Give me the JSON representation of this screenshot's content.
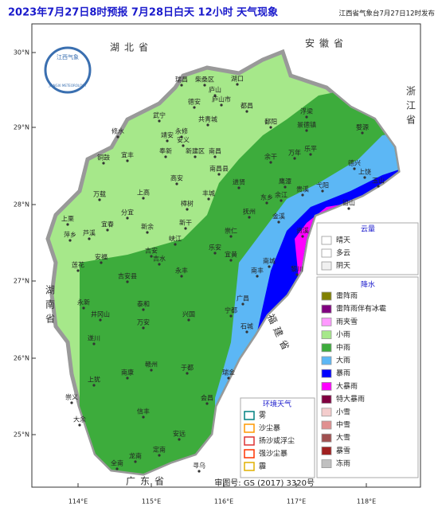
{
  "header": {
    "title": "2023年7月27日8时预报 7月28日白天 12小时  天气现象",
    "publisher": "江西省气象台7月27日12时发布"
  },
  "logo": {
    "name": "江西气象",
    "english": "JIANGXI METEOROLOGY"
  },
  "lat_labels": [
    "30°N",
    "29°N",
    "28°N",
    "27°N",
    "26°N",
    "25°N"
  ],
  "lon_labels": [
    "114°E",
    "115°E",
    "116°E",
    "117°E",
    "118°E"
  ],
  "provinces": [
    "湖北省",
    "安徽省",
    "浙江省",
    "湖南省",
    "福建省",
    "广东省"
  ],
  "cities": [
    "修水",
    "武宁",
    "瑞昌",
    "柴桑区",
    "湖口",
    "庐山",
    "德安",
    "都昌",
    "共青城",
    "永修",
    "庐山市",
    "鄱阳",
    "景德镇",
    "浮梁",
    "婺源",
    "乐平",
    "德兴",
    "玉山",
    "上饶",
    "铅山",
    "弋阳",
    "贵溪",
    "鹰潭",
    "余江",
    "万年",
    "余干",
    "进贤",
    "南昌",
    "南昌县",
    "新建区",
    "安义",
    "奉新",
    "靖安",
    "宜丰",
    "铜鼓",
    "高安",
    "丰城",
    "樟树",
    "上高",
    "万载",
    "宜春",
    "分宜",
    "新余",
    "萍乡",
    "芦溪",
    "上栗",
    "莲花",
    "安福",
    "吉安",
    "吉安县",
    "吉水",
    "峡江",
    "新干",
    "永丰",
    "乐安",
    "崇仁",
    "抚州",
    "金溪",
    "资溪",
    "南城",
    "黎川",
    "南丰",
    "广昌",
    "宜黄",
    "泰和",
    "永新",
    "井冈山",
    "遂川",
    "万安",
    "兴国",
    "宁都",
    "石城",
    "瑞金",
    "于都",
    "赣州",
    "南康",
    "上犹",
    "崇义",
    "大余",
    "信丰",
    "安远",
    "会昌",
    "寻乌",
    "定南",
    "龙南",
    "全南",
    "东乡"
  ],
  "cloud_legend": {
    "title": "云量",
    "items": [
      {
        "label": "晴天",
        "color": "#ffffff"
      },
      {
        "label": "多云",
        "color": "#ffffff"
      },
      {
        "label": "阴天",
        "color": "#f0f0f0"
      }
    ]
  },
  "precip_legend": {
    "title": "降水",
    "items": [
      {
        "label": "雷阵雨",
        "color": "#808000"
      },
      {
        "label": "雷阵雨伴有冰雹",
        "color": "#800080"
      },
      {
        "label": "雨夹雪",
        "color": "#ff99ff"
      },
      {
        "label": "小雨",
        "color": "#a6e88a"
      },
      {
        "label": "中雨",
        "color": "#3dac3c"
      },
      {
        "label": "大雨",
        "color": "#5cb7f5"
      },
      {
        "label": "暴雨",
        "color": "#0000ff"
      },
      {
        "label": "大暴雨",
        "color": "#ff00ff"
      },
      {
        "label": "特大暴雨",
        "color": "#800040"
      },
      {
        "label": "小雪",
        "color": "#f4cccc"
      },
      {
        "label": "中雪",
        "color": "#e09090"
      },
      {
        "label": "大雪",
        "color": "#a05050"
      },
      {
        "label": "暴雪",
        "color": "#a02020"
      },
      {
        "label": "冻雨",
        "color": "#c0c0c0"
      }
    ]
  },
  "env_legend": {
    "title": "环境天气",
    "items": [
      {
        "label": "雾",
        "color": "#008080"
      },
      {
        "label": "沙尘暴",
        "color": "#ff9900"
      },
      {
        "label": "扬沙或浮尘",
        "color": "#dd3333"
      },
      {
        "label": "强沙尘暴",
        "color": "#ff3300"
      },
      {
        "label": "霾",
        "color": "#e0b000"
      }
    ]
  },
  "review_number": "审图号: GS (2017) 3320号"
}
